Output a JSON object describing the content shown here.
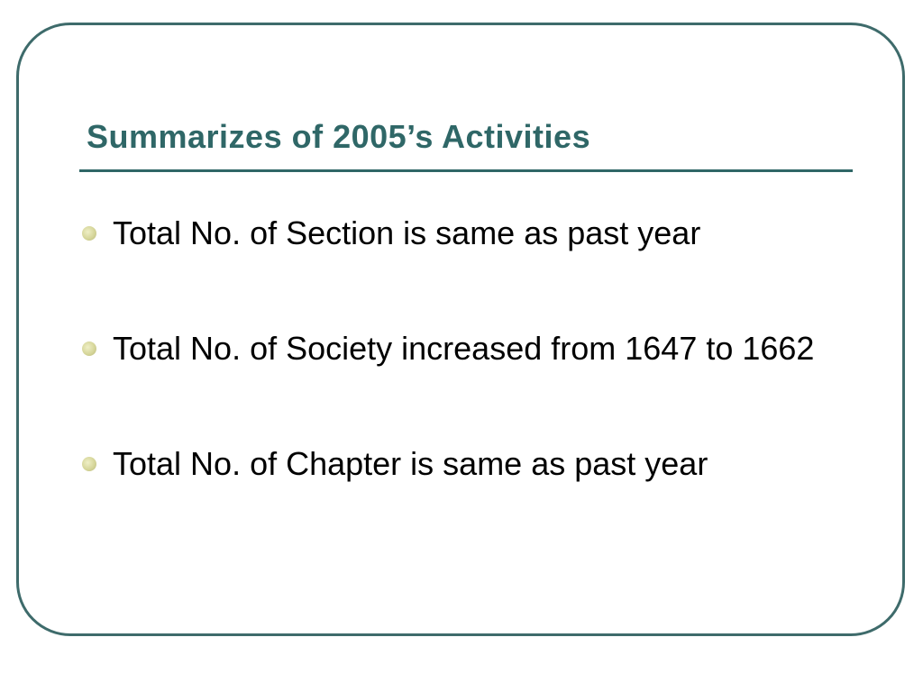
{
  "slide": {
    "title": "Summarizes of 2005’s Activities",
    "bullets": [
      {
        "text": "Total No. of Section is same as past year"
      },
      {
        "text": "Total No. of Society increased from  1647 to 1662"
      },
      {
        "text": "Total No. of Chapter is same as past year"
      }
    ]
  },
  "colors": {
    "title": "#2f6767",
    "frame": "#3e6b6b",
    "bullet_marker": "#d6d69a",
    "body_text": "#000000",
    "background": "#ffffff"
  }
}
